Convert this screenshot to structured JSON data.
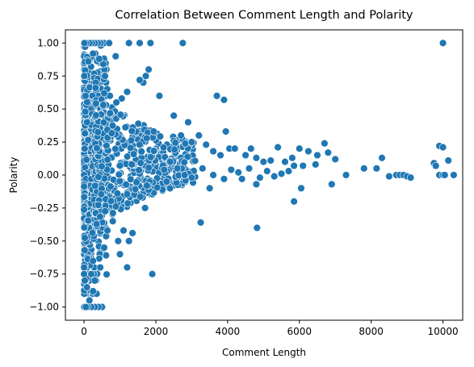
{
  "chart_data": {
    "type": "scatter",
    "title": "Correlation Between Comment Length and Polarity",
    "xlabel": "Comment Length",
    "ylabel": "Polarity",
    "xlim": [
      -520,
      10550
    ],
    "ylim": [
      -1.1,
      1.1
    ],
    "xticks": [
      0,
      2000,
      4000,
      6000,
      8000,
      10000
    ],
    "xtick_labels": [
      "0",
      "2000",
      "4000",
      "6000",
      "8000",
      "10000"
    ],
    "yticks": [
      -1.0,
      -0.75,
      -0.5,
      -0.25,
      0.0,
      0.25,
      0.5,
      0.75,
      1.0
    ],
    "ytick_labels": [
      "−1.00",
      "−0.75",
      "−0.50",
      "−0.25",
      "0.00",
      "0.25",
      "0.50",
      "0.75",
      "1.00"
    ],
    "grid": false,
    "marker_color": "#1f77b4",
    "marker_edge_color": "#ffffff",
    "series": [
      {
        "points": [
          [
            10000,
            1.0
          ],
          [
            2750,
            1.0
          ],
          [
            1850,
            1.0
          ],
          [
            1550,
            1.0
          ],
          [
            1250,
            1.0
          ],
          [
            700,
            1.0
          ],
          [
            460,
            1.0
          ],
          [
            380,
            1.0
          ],
          [
            300,
            1.0
          ],
          [
            220,
            1.0
          ],
          [
            150,
            1.0
          ],
          [
            60,
            1.0
          ],
          [
            10,
            1.0
          ],
          [
            880,
            0.9
          ],
          [
            420,
            0.88
          ],
          [
            250,
            0.92
          ],
          [
            120,
            0.86
          ],
          [
            1800,
            0.8
          ],
          [
            1720,
            0.75
          ],
          [
            1650,
            0.7
          ],
          [
            1550,
            0.72
          ],
          [
            1200,
            0.63
          ],
          [
            1050,
            0.58
          ],
          [
            900,
            0.55
          ],
          [
            720,
            0.6
          ],
          [
            560,
            0.62
          ],
          [
            320,
            0.66
          ],
          [
            3700,
            0.6
          ],
          [
            3900,
            0.57
          ],
          [
            3950,
            0.33
          ],
          [
            4050,
            0.2
          ],
          [
            4200,
            0.2
          ],
          [
            4500,
            0.15
          ],
          [
            4650,
            0.2
          ],
          [
            4800,
            0.13
          ],
          [
            5000,
            0.1
          ],
          [
            5200,
            0.11
          ],
          [
            5400,
            0.21
          ],
          [
            5600,
            0.1
          ],
          [
            5800,
            0.13
          ],
          [
            6000,
            0.2
          ],
          [
            6250,
            0.18
          ],
          [
            6500,
            0.15
          ],
          [
            6700,
            0.24
          ],
          [
            6800,
            0.17
          ],
          [
            7000,
            0.12
          ],
          [
            5850,
            0.07
          ],
          [
            6100,
            0.07
          ],
          [
            6450,
            0.08
          ],
          [
            7300,
            0.0
          ],
          [
            7800,
            0.05
          ],
          [
            8150,
            0.05
          ],
          [
            8300,
            0.13
          ],
          [
            8500,
            -0.01
          ],
          [
            8700,
            0.0
          ],
          [
            8800,
            0.0
          ],
          [
            8900,
            0.0
          ],
          [
            9000,
            -0.01
          ],
          [
            9100,
            -0.02
          ],
          [
            9750,
            0.09
          ],
          [
            9800,
            0.07
          ],
          [
            9900,
            0.22
          ],
          [
            10000,
            0.21
          ],
          [
            10150,
            0.11
          ],
          [
            9900,
            0.0
          ],
          [
            10000,
            0.0
          ],
          [
            10050,
            0.0
          ],
          [
            10300,
            0.0
          ],
          [
            4820,
            -0.4
          ],
          [
            3250,
            -0.36
          ],
          [
            5850,
            -0.2
          ],
          [
            6050,
            -0.1
          ],
          [
            6900,
            -0.07
          ],
          [
            4800,
            -0.07
          ],
          [
            3500,
            -0.1
          ],
          [
            2300,
            -0.05
          ],
          [
            1900,
            -0.75
          ],
          [
            1200,
            -0.7
          ],
          [
            1250,
            -0.5
          ],
          [
            1350,
            -0.44
          ],
          [
            1100,
            -0.42
          ],
          [
            950,
            -0.5
          ],
          [
            1700,
            -0.25
          ],
          [
            1750,
            -0.08
          ],
          [
            1000,
            -0.6
          ],
          [
            800,
            -0.35
          ],
          [
            650,
            -0.42
          ],
          [
            560,
            -0.55
          ],
          [
            500,
            -1.0
          ],
          [
            400,
            -1.0
          ],
          [
            300,
            -1.0
          ],
          [
            200,
            -1.0
          ],
          [
            100,
            -1.0
          ],
          [
            50,
            -1.0
          ],
          [
            350,
            -0.9
          ],
          [
            250,
            -0.88
          ],
          [
            150,
            -0.95
          ],
          [
            300,
            -0.8
          ],
          [
            80,
            -0.85
          ],
          [
            200,
            -0.75
          ],
          [
            450,
            -0.7
          ],
          [
            250,
            -0.65
          ],
          [
            2100,
            0.6
          ],
          [
            2500,
            0.45
          ],
          [
            2700,
            0.3
          ],
          [
            2900,
            0.4
          ],
          [
            3000,
            0.25
          ],
          [
            3200,
            0.3
          ],
          [
            3400,
            0.23
          ],
          [
            3600,
            0.18
          ],
          [
            3800,
            0.15
          ],
          [
            2400,
            0.1
          ],
          [
            2600,
            0.05
          ],
          [
            2800,
            0.0
          ],
          [
            3000,
            -0.02
          ],
          [
            3300,
            0.05
          ],
          [
            3600,
            0.0
          ],
          [
            3900,
            -0.03
          ],
          [
            4100,
            0.04
          ],
          [
            4300,
            0.02
          ],
          [
            4400,
            -0.03
          ],
          [
            4600,
            0.05
          ],
          [
            4900,
            -0.02
          ],
          [
            5100,
            0.03
          ],
          [
            5300,
            -0.01
          ],
          [
            5500,
            0.01
          ],
          [
            5700,
            0.03
          ]
        ]
      }
    ]
  }
}
